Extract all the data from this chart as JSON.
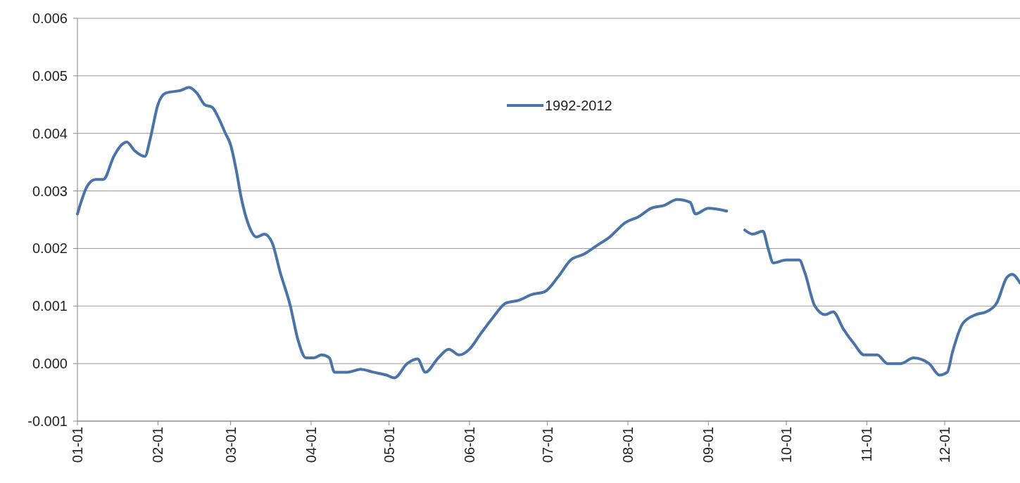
{
  "chart_data": {
    "type": "line",
    "x": [
      "--01-01",
      "--01-05",
      "--01-08",
      "--01-11",
      "--01-15",
      "--01-18",
      "--01-20",
      "--01-23",
      "--01-27",
      "--01-29",
      "--02-01",
      "--02-04",
      "--02-10",
      "--02-13",
      "--02-16",
      "--02-19",
      "--02-22",
      "--02-24",
      "--02-27",
      "--03-01",
      "--03-03",
      "--03-05",
      "--03-08",
      "--03-11",
      "--03-14",
      "--03-17",
      "--03-20",
      "--03-24",
      "--03-27",
      "--03-30",
      "--04-02",
      "--04-05",
      "--04-08",
      "--04-10",
      "--04-15",
      "--04-20",
      "--04-25",
      "--04-30",
      "--05-03",
      "--05-08",
      "--05-12",
      "--05-15",
      "--05-20",
      "--05-24",
      "--05-28",
      "--06-01",
      "--06-05",
      "--06-10",
      "--06-15",
      "--06-20",
      "--06-25",
      "--06-30",
      "--07-05",
      "--07-10",
      "--07-15",
      "--07-20",
      "--07-25",
      "--07-31",
      "--08-05",
      "--08-10",
      "--08-15",
      "--08-20",
      "--08-25",
      "--08-27",
      "--09-01",
      "--09-08",
      "--09-11",
      "--09-15",
      "--09-18",
      "--09-22",
      "--09-24",
      "--09-26",
      "--10-01",
      "--10-06",
      "--10-08",
      "--10-12",
      "--10-16",
      "--10-19",
      "--10-23",
      "--10-27",
      "--10-31",
      "--11-05",
      "--11-09",
      "--11-14",
      "--11-19",
      "--11-25",
      "--11-29",
      "--12-02",
      "--12-04",
      "--12-08",
      "--12-13",
      "--12-17",
      "--12-21",
      "--12-25",
      "--12-27",
      "--12-30"
    ],
    "series": [
      {
        "name": "1992-2012",
        "color": "#4a74a8",
        "values": [
          0.0026,
          0.0031,
          0.0032,
          0.0032,
          0.0036,
          0.0038,
          0.00385,
          0.0037,
          0.0036,
          0.0039,
          0.0045,
          0.0047,
          0.00475,
          0.0048,
          0.0047,
          0.0045,
          0.00445,
          0.0043,
          0.004,
          0.0038,
          0.0034,
          0.0029,
          0.0024,
          0.0022,
          0.00225,
          0.0021,
          0.0016,
          0.001,
          0.0004,
          0.0001,
          0.0001,
          0.00015,
          0.0001,
          -0.00015,
          -0.00015,
          -0.0001,
          -0.00015,
          -0.0002,
          -0.00025,
          0,
          8e-05,
          -0.00015,
          0.0001,
          0.00025,
          0.00015,
          0.00025,
          0.0005,
          0.0008,
          0.00105,
          0.0011,
          0.0012,
          0.00125,
          0.0015,
          0.0018,
          0.0019,
          0.00205,
          0.0022,
          0.00245,
          0.00255,
          0.0027,
          0.00275,
          0.00285,
          0.0028,
          0.0026,
          0.0027,
          0.00265,
          null,
          0.00232,
          0.00225,
          0.0023,
          0.002,
          0.00175,
          0.0018,
          0.0018,
          0.0016,
          0.001,
          0.00085,
          0.0009,
          0.0006,
          0.00035,
          0.00015,
          0.00015,
          0,
          0,
          0.0001,
          0,
          -0.0002,
          -0.00015,
          0.0002,
          0.0007,
          0.00085,
          0.0009,
          0.00105,
          0.0015,
          0.00155,
          0.0014
        ]
      }
    ],
    "xlim": [
      "--01-01",
      "--12-30"
    ],
    "xticks": [
      {
        "value": "--01-01",
        "label": "01-01"
      },
      {
        "value": "--02-01",
        "label": "02-01"
      },
      {
        "value": "--03-01",
        "label": "03-01"
      },
      {
        "value": "--04-01",
        "label": "04-01"
      },
      {
        "value": "--05-01",
        "label": "05-01"
      },
      {
        "value": "--06-01",
        "label": "06-01"
      },
      {
        "value": "--07-01",
        "label": "07-01"
      },
      {
        "value": "--08-01",
        "label": "08-01"
      },
      {
        "value": "--09-01",
        "label": "09-01"
      },
      {
        "value": "--10-01",
        "label": "10-01"
      },
      {
        "value": "--11-01",
        "label": "11-01"
      },
      {
        "value": "--12-01",
        "label": "12-01"
      }
    ],
    "ylim": [
      -0.001,
      0.006
    ],
    "yticks": [
      -0.001,
      {
        "value": 0,
        "label": "0.000"
      },
      0.001,
      0.002,
      0.003,
      0.004,
      0.005,
      0.006
    ],
    "grid": "y",
    "legend": "top",
    "marker": "none",
    "line_style": "solid"
  }
}
